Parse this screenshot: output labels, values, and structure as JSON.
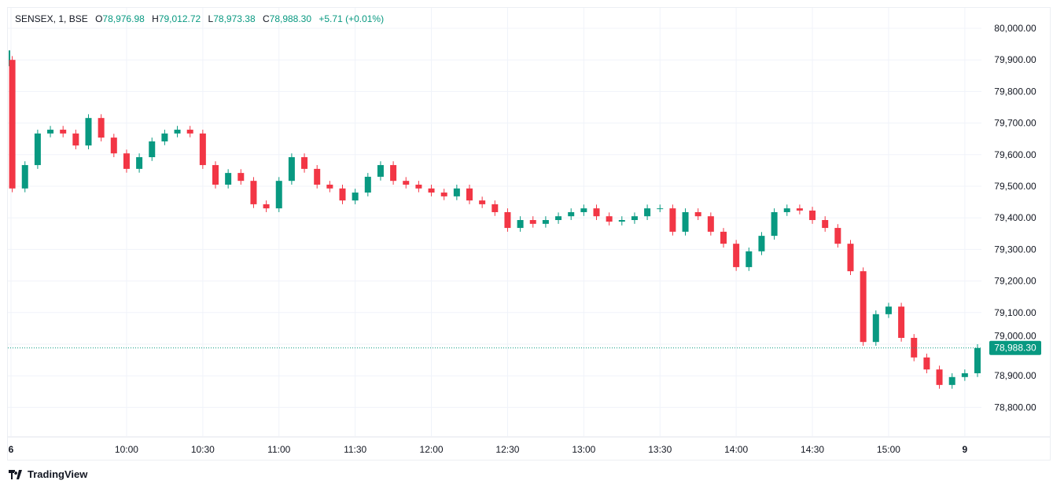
{
  "legend": {
    "symbol": "SENSEX, 1, BSE",
    "open_label": "O",
    "open": "78,976.98",
    "high_label": "H",
    "high": "79,012.72",
    "low_label": "L",
    "low": "78,973.38",
    "close_label": "C",
    "close": "78,988.30",
    "change": "+5.71 (+0.01%)"
  },
  "branding": "TradingView",
  "colors": {
    "up": "#089981",
    "down": "#f23645",
    "grid": "#f0f3fa",
    "text": "#131722"
  },
  "chart_data": {
    "type": "candlestick",
    "title": "SENSEX, 1, BSE",
    "previous_close": 79900,
    "start_time": "09:15",
    "interval_minutes": 5,
    "closes": [
      79493,
      79567,
      79667,
      79679,
      79667,
      79629,
      79716,
      79654,
      79604,
      79555,
      79592,
      79642,
      79667,
      79679,
      79667,
      79567,
      79505,
      79542,
      79517,
      79443,
      79430,
      79517,
      79592,
      79555,
      79505,
      79493,
      79455,
      79480,
      79530,
      79567,
      79517,
      79505,
      79493,
      79480,
      79468,
      79493,
      79455,
      79443,
      79418,
      79368,
      79393,
      79381,
      79393,
      79405,
      79418,
      79430,
      79405,
      79388,
      79393,
      79405,
      79430,
      79430,
      79356,
      79418,
      79405,
      79356,
      79318,
      79244,
      79294,
      79343,
      79418,
      79430,
      79423,
      79393,
      79368,
      79318,
      79231,
      79007,
      79095,
      79119,
      79020,
      78958,
      78920,
      78871,
      78896,
      78908,
      78988
    ],
    "last_price_label": "78,988.30",
    "last_price": 78988.3,
    "ylim": [
      78750,
      80050
    ],
    "y_ticks": [
      "80,000.00",
      "79,900.00",
      "79,800.00",
      "79,700.00",
      "79,600.00",
      "79,500.00",
      "79,400.00",
      "79,300.00",
      "79,200.00",
      "79,100.00",
      "79,000.00",
      "78,900.00",
      "78,800.00"
    ],
    "x_ticks": [
      "6",
      "10:00",
      "10:30",
      "11:00",
      "11:30",
      "12:00",
      "12:30",
      "13:00",
      "13:30",
      "14:00",
      "14:30",
      "15:00",
      "9"
    ],
    "grid": true
  }
}
